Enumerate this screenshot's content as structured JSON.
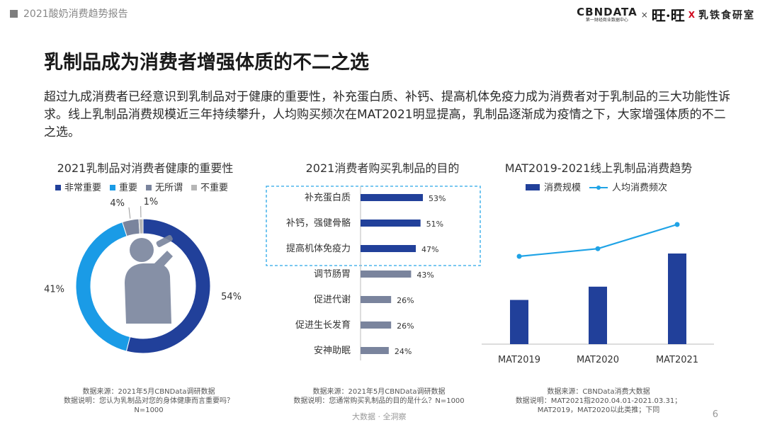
{
  "header": {
    "report_title": "2021酸奶消费趋势报告"
  },
  "brands": {
    "cbn": "CBNDATA",
    "cbn_sub": "第一财经商业数据中心",
    "x1": "×",
    "wang": "旺·旺",
    "x2": "X",
    "milk_lab": "乳铁食研室"
  },
  "page": {
    "title": "乳制品成为消费者增强体质的不二之选",
    "intro": "超过九成消费者已经意识到乳制品对于健康的重要性，补充蛋白质、补钙、提高机体免疫力成为消费者对于乳制品的三大功能性诉求。线上乳制品消费规模近三年持续攀升，人均购买频次在MAT2021明显提高，乳制品逐渐成为疫情之下，大家增强体质的不二之选。"
  },
  "colors": {
    "dark_blue": "#21409a",
    "blue": "#1a9be6",
    "gray": "#7a849d",
    "light_gray": "#b6b6b6",
    "line": "#1fa3e6"
  },
  "chart_data": [
    {
      "type": "pie",
      "title": "2021乳制品对消费者健康的重要性",
      "legend": [
        "非常重要",
        "重要",
        "无所谓",
        "不重要"
      ],
      "values": [
        54,
        41,
        4,
        1
      ],
      "labels": [
        "54%",
        "41%",
        "4%",
        "1%"
      ],
      "source": "数据来源：2021年5月CBNData调研数据",
      "note": "数据说明：您认为乳制品对您的身体健康而言重要吗？",
      "note2": "N=1000"
    },
    {
      "type": "bar",
      "orientation": "horizontal",
      "title": "2021消费者购买乳制品的目的",
      "categories": [
        "补充蛋白质",
        "补钙，强健骨骼",
        "提高机体免疫力",
        "调节肠胃",
        "促进代谢",
        "促进生长发育",
        "安神助眠"
      ],
      "values": [
        53,
        51,
        47,
        43,
        26,
        26,
        24
      ],
      "labels": [
        "53%",
        "51%",
        "47%",
        "43%",
        "26%",
        "26%",
        "24%"
      ],
      "highlighted": 3,
      "source": "数据来源：2021年5月CBNData调研数据",
      "note": "数据说明：您通常购买乳制品的目的是什么？N=1000"
    },
    {
      "type": "bar+line",
      "title": "MAT2019-2021线上乳制品消费趋势",
      "categories": [
        "MAT2019",
        "MAT2020",
        "MAT2021"
      ],
      "series": [
        {
          "name": "消费规模",
          "values": [
            1.0,
            1.3,
            2.05
          ]
        },
        {
          "name": "人均消费频次",
          "values": [
            1.0,
            1.06,
            1.25
          ]
        }
      ],
      "source": "数据来源：CBNData消费大数据",
      "note": "数据说明：MAT2021指2020.04.01-2021.03.31；",
      "note2": "MAT2019，MAT2020以此类推；下同"
    }
  ],
  "footer": {
    "text": "大数据 · 全洞察",
    "page": "6"
  }
}
